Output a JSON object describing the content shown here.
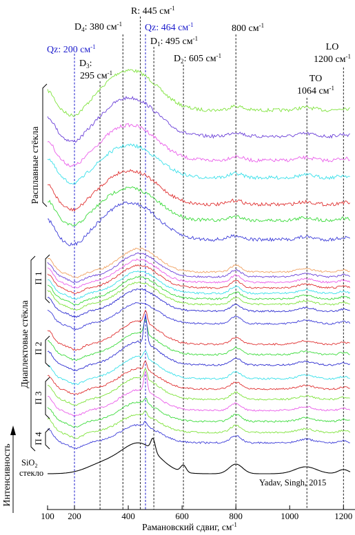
{
  "chart_data": {
    "type": "line",
    "xlabel": "Рамановский сдвиг, см",
    "xlabel_sup": "-1",
    "ylabel": "Интенсивность",
    "xlim": [
      100,
      1230
    ],
    "x_ticks": [
      100,
      200,
      400,
      600,
      800,
      1000,
      1200
    ],
    "reference_lines": [
      {
        "x": 200,
        "kind": "Qz",
        "label": "Qz: 200 см",
        "sup": "-1",
        "color": "#1a1acc"
      },
      {
        "x": 295,
        "kind": "D",
        "label": "D",
        "sub": "3",
        "label2": "295 см",
        "sup": "-1",
        "color": "#000000"
      },
      {
        "x": 380,
        "kind": "D",
        "label": "D",
        "sub": "4",
        "label2": ": 380 см",
        "sup": "-1",
        "color": "#000000"
      },
      {
        "x": 445,
        "kind": "R",
        "label": "R: 445 см",
        "sup": "-1",
        "color": "#000000"
      },
      {
        "x": 464,
        "kind": "Qz",
        "label": "Qz: 464 см",
        "sup": "-1",
        "color": "#1a1acc"
      },
      {
        "x": 495,
        "kind": "D",
        "label": "D",
        "sub": "1",
        "label2": ": 495 см",
        "sup": "-1",
        "color": "#000000"
      },
      {
        "x": 605,
        "kind": "D",
        "label": "D",
        "sub": "2",
        "label2": ": 605 см",
        "sup": "-1",
        "color": "#000000"
      },
      {
        "x": 800,
        "kind": "plain",
        "label": "800 см",
        "sup": "-1",
        "color": "#000000"
      },
      {
        "x": 1064,
        "kind": "TO",
        "label": "TO",
        "label2": "1064 см",
        "sup": "-1",
        "color": "#000000"
      },
      {
        "x": 1200,
        "kind": "LO",
        "label": "LO",
        "label2": "1200 см",
        "sup": "-1",
        "color": "#000000"
      }
    ],
    "groups": [
      {
        "name": "Расплавные стёкла",
        "series_count": 7
      },
      {
        "name": "Диаплектовые стёкла",
        "series_count": 19
      },
      {
        "name": "П 1",
        "series_count": 8
      },
      {
        "name": "П 2",
        "series_count": 3
      },
      {
        "name": "П 3",
        "series_count": 5
      },
      {
        "name": "П 4",
        "series_count": 3
      }
    ],
    "reference_spectrum": {
      "label": "SiO",
      "label_sub": "2",
      "label2": "стекло",
      "citation": "Yadav, Singh, 2015"
    },
    "series_colors": [
      "#7ee33a",
      "#6a3fd8",
      "#ea5cea",
      "#38e0ea",
      "#e03030",
      "#3adb3a",
      "#3a3ad8",
      "#f0a060",
      "#2a2ad0",
      "#000000"
    ],
    "grid": false,
    "legend": "none"
  }
}
